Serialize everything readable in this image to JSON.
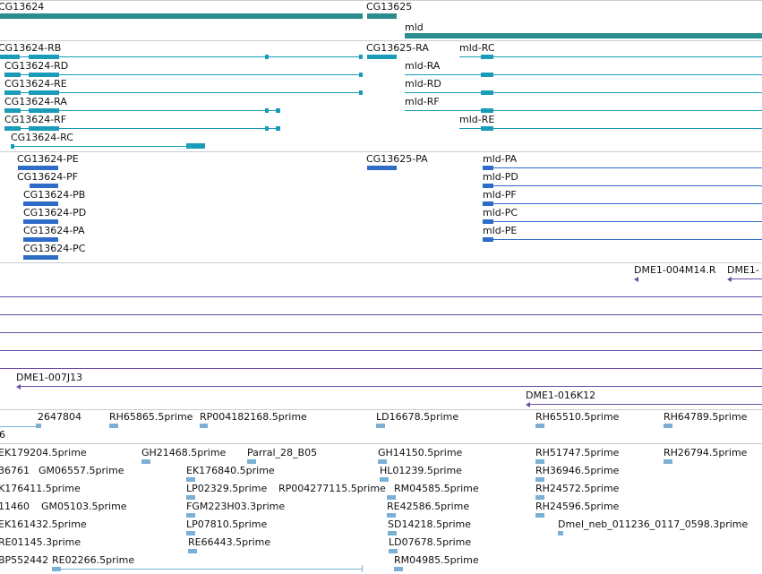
{
  "colors": {
    "gene": "#2a8c8c",
    "transcript": "#1a9cb8",
    "protein": "#2f6cc8",
    "contig": "#6a4ca8",
    "est": "#7ab0d6",
    "divider": "#c9ccd1"
  },
  "gene_track": {
    "labels": [
      "CG13624",
      "CG13625",
      "mld"
    ]
  },
  "transcript_track": {
    "labels": [
      "CG13624-RB",
      "CG13625-RA",
      "mld-RC",
      "CG13624-RD",
      "mld-RA",
      "CG13624-RE",
      "mld-RD",
      "CG13624-RA",
      "mld-RF",
      "CG13624-RF",
      "mld-RE",
      "CG13624-RC"
    ]
  },
  "protein_track": {
    "labels": [
      "CG13624-PE",
      "CG13625-PA",
      "mld-PA",
      "CG13624-PF",
      "mld-PD",
      "CG13624-PB",
      "mld-PF",
      "CG13624-PD",
      "mld-PC",
      "CG13624-PA",
      "mld-PE",
      "CG13624-PC"
    ]
  },
  "contig_track": {
    "labels": [
      "DME1-004M14.R",
      "DME1-",
      "DME1-007J13",
      "DME1-016K12"
    ]
  },
  "est_track_a": {
    "labels": [
      "2647804",
      "RH65865.5prime",
      "RP004182168.5prime",
      "LD16678.5prime",
      "RH65510.5prime",
      "RH64789.5prime",
      "6"
    ]
  },
  "est_track_b": {
    "labels": [
      "EK179204.5prime",
      "GH21468.5prime",
      "Parral_28_B05",
      "GH14150.5prime",
      "RH51747.5prime",
      "RH26794.5prime",
      "36761",
      "GM06557.5prime",
      "EK176840.5prime",
      "HL01239.5prime",
      "RH36946.5prime",
      "K176411.5prime",
      "LP02329.5prime",
      "RP004277115.5prime",
      "RM04585.5prime",
      "RH24572.5prime",
      "11460",
      "GM05103.5prime",
      "FGM223H03.3prime",
      "RE42586.5prime",
      "RH24596.5prime",
      "EK161432.5prime",
      "LP07810.5prime",
      "SD14218.5prime",
      "Dmel_neb_011236_0117_0598.3prime",
      "RE01145.3prime",
      "RE66443.5prime",
      "LD07678.5prime",
      "BP552442",
      "RE02266.5prime",
      "RM04985.5prime"
    ]
  }
}
